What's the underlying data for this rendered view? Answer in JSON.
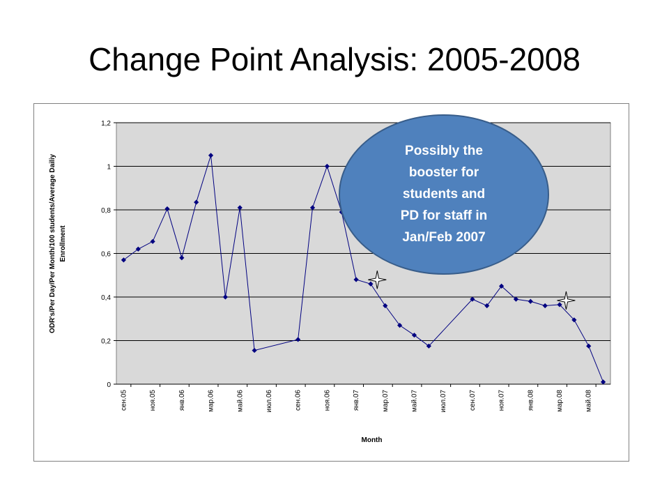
{
  "slide": {
    "title": "Change Point Analysis: 2005-2008"
  },
  "colors": {
    "series": "#000080",
    "plot_bg": "#d9d9d9",
    "bubble_fill": "#4f81bd",
    "bubble_stroke": "#385d8a"
  },
  "callout": {
    "lines": [
      "Possibly the",
      "booster for",
      "students and",
      "PD for staff in",
      "Jan/Feb 2007"
    ]
  },
  "chart_data": {
    "type": "line",
    "xlabel": "Month",
    "ylabel_lines": [
      "ODR's/Per Day/Per Month/100 students/Average Dailiy",
      "Enrollment"
    ],
    "ylim": [
      0,
      1.2
    ],
    "yticks": [
      "0",
      "0,2",
      "0,4",
      "0,6",
      "0,8",
      "1",
      "1,2"
    ],
    "xticks": [
      "сен.05",
      "ноя.05",
      "янв.06",
      "мар.06",
      "май.06",
      "июл.06",
      "сен.06",
      "ноя.06",
      "янв.07",
      "мар.07",
      "май.07",
      "июл.07",
      "сен.07",
      "ноя.07",
      "янв.08",
      "мар.08",
      "май.08"
    ],
    "grid": true,
    "series": [
      {
        "points": [
          [
            "2005-09",
            0.57
          ],
          [
            "2005-10",
            0.62
          ],
          [
            "2005-11",
            0.655
          ],
          [
            "2005-12",
            0.805
          ],
          [
            "2006-01",
            0.58
          ],
          [
            "2006-02",
            0.835
          ],
          [
            "2006-03",
            1.05
          ],
          [
            "2006-04",
            0.4
          ],
          [
            "2006-05",
            0.81
          ],
          [
            "2006-06",
            0.155
          ],
          [
            "2006-09",
            0.205
          ],
          [
            "2006-10",
            0.81
          ],
          [
            "2006-11",
            1.0
          ],
          [
            "2006-12",
            0.79
          ],
          [
            "2007-01",
            0.48
          ],
          [
            "2007-02",
            0.46
          ],
          [
            "2007-03",
            0.36
          ],
          [
            "2007-04",
            0.27
          ],
          [
            "2007-05",
            0.225
          ],
          [
            "2007-06",
            0.175
          ],
          [
            "2007-09",
            0.39
          ],
          [
            "2007-10",
            0.36
          ],
          [
            "2007-11",
            0.45
          ],
          [
            "2007-12",
            0.39
          ],
          [
            "2008-01",
            0.38
          ],
          [
            "2008-02",
            0.36
          ],
          [
            "2008-03",
            0.365
          ],
          [
            "2008-04",
            0.295
          ],
          [
            "2008-05",
            0.175
          ],
          [
            "2008-06",
            0.01
          ]
        ]
      }
    ],
    "change_points": [
      "2007-02",
      "2008-03"
    ]
  }
}
